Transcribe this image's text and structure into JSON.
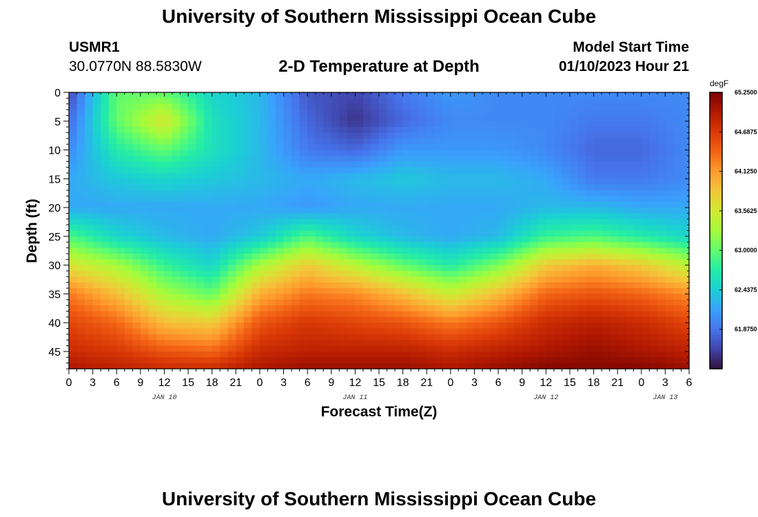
{
  "header": {
    "title": "University of Southern Mississippi Ocean Cube",
    "station_id": "USMR1",
    "station_coords": "30.0770N  88.5830W",
    "subtitle": "2-D Temperature at Depth",
    "model_start_label": "Model Start Time",
    "model_start_value": "01/10/2023 Hour 21"
  },
  "footer": {
    "title": "University of Southern Mississippi Ocean Cube"
  },
  "chart_data": {
    "type": "heatmap",
    "title": "2-D Temperature at Depth",
    "xlabel": "Forecast Time(Z)",
    "ylabel": "Depth (ft)",
    "units": "degF",
    "xlim": [
      0,
      78
    ],
    "ylim": [
      48,
      0
    ],
    "x_tick_labels": [
      "0",
      "3",
      "6",
      "9",
      "12",
      "15",
      "18",
      "21",
      "0",
      "3",
      "6",
      "9",
      "12",
      "15",
      "18",
      "21",
      "0",
      "3",
      "6",
      "9",
      "12",
      "15",
      "18",
      "21",
      "0",
      "3",
      "6"
    ],
    "y_ticks": [
      0,
      5,
      10,
      15,
      20,
      25,
      30,
      35,
      40,
      45
    ],
    "date_labels": [
      {
        "label": "JAN 10",
        "hour": 12
      },
      {
        "label": "JAN 11",
        "hour": 36
      },
      {
        "label": "JAN 12",
        "hour": 60
      },
      {
        "label": "JAN 13",
        "hour": 75
      }
    ],
    "colorbar": {
      "label": "degF",
      "min": 61.3125,
      "max": 65.25,
      "tick_labels": [
        "65.2500",
        "64.6875",
        "64.1250",
        "63.5625",
        "63.0000",
        "62.4375",
        "61.8750"
      ],
      "tick_values": [
        65.25,
        64.6875,
        64.125,
        63.5625,
        63.0,
        62.4375,
        61.875
      ],
      "colors": [
        "#30123b",
        "#4145ab",
        "#4675ed",
        "#39a2fc",
        "#1bcfd4",
        "#24eca6",
        "#61fc6c",
        "#a4fc3b",
        "#d1e834",
        "#f3c63a",
        "#fe9b2d",
        "#f36315",
        "#d93806",
        "#b11901",
        "#7a0402"
      ]
    },
    "grid": false,
    "z_summary": {
      "x_hours": [
        0,
        6,
        12,
        18,
        24,
        30,
        36,
        42,
        48,
        54,
        60,
        66,
        72,
        78
      ],
      "depths_ft": [
        0,
        5,
        10,
        15,
        20,
        25,
        30,
        35,
        40,
        45,
        48
      ],
      "degF": [
        [
          61.6,
          63.0,
          63.0,
          62.5,
          62.3,
          61.7,
          61.6,
          61.9,
          62.1,
          62.0,
          62.0,
          62.0,
          62.0,
          62.0
        ],
        [
          61.8,
          63.0,
          63.6,
          62.6,
          62.3,
          61.8,
          61.5,
          61.8,
          62.0,
          62.0,
          62.0,
          61.9,
          61.9,
          62.0
        ],
        [
          62.0,
          62.7,
          63.0,
          62.6,
          62.3,
          61.9,
          61.8,
          62.1,
          62.1,
          62.1,
          62.0,
          61.8,
          61.8,
          62.0
        ],
        [
          62.2,
          62.4,
          62.5,
          62.4,
          62.3,
          62.2,
          62.3,
          62.4,
          62.3,
          62.3,
          62.2,
          61.9,
          61.9,
          62.0
        ],
        [
          62.2,
          62.2,
          62.2,
          62.2,
          62.2,
          62.1,
          62.2,
          62.2,
          62.2,
          62.2,
          62.3,
          62.3,
          62.2,
          62.2
        ],
        [
          62.9,
          62.5,
          62.3,
          62.2,
          62.4,
          62.9,
          62.5,
          62.3,
          62.2,
          62.3,
          62.8,
          62.9,
          62.7,
          62.5
        ],
        [
          63.6,
          63.3,
          62.8,
          62.5,
          63.3,
          63.8,
          63.4,
          63.0,
          62.7,
          63.1,
          63.8,
          64.0,
          63.8,
          63.4
        ],
        [
          64.3,
          63.9,
          63.3,
          63.0,
          64.0,
          64.3,
          64.2,
          63.9,
          63.5,
          63.9,
          64.4,
          64.5,
          64.4,
          64.2
        ],
        [
          64.6,
          64.4,
          63.9,
          63.8,
          64.5,
          64.7,
          64.6,
          64.5,
          64.3,
          64.5,
          64.8,
          64.9,
          64.8,
          64.6
        ],
        [
          64.8,
          64.7,
          64.5,
          64.4,
          64.8,
          64.9,
          64.9,
          64.9,
          64.8,
          64.9,
          65.0,
          65.1,
          65.0,
          64.9
        ],
        [
          65.0,
          64.9,
          64.8,
          64.8,
          65.0,
          65.1,
          65.1,
          65.1,
          65.0,
          65.1,
          65.2,
          65.2,
          65.2,
          65.1
        ]
      ]
    }
  }
}
